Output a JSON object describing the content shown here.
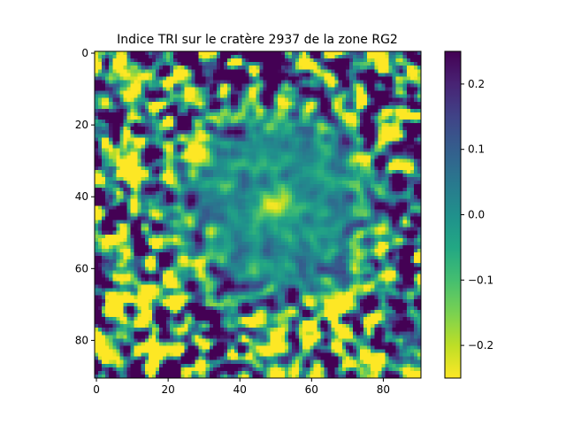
{
  "chart_data": {
    "type": "heatmap",
    "title": "Indice TRI sur le cratère 2937 de la zone RG2",
    "xlabel": "",
    "ylabel": "",
    "grid_size": [
      91,
      91
    ],
    "xlim": [
      -0.5,
      90.5
    ],
    "ylim": [
      90.5,
      -0.5
    ],
    "x_ticks": [
      0,
      20,
      40,
      60,
      80
    ],
    "y_ticks": [
      0,
      20,
      40,
      60,
      80
    ],
    "colormap": "viridis_r",
    "value_range": [
      -0.25,
      0.25
    ],
    "colorbar": {
      "ticks": [
        0.2,
        0.1,
        0.0,
        -0.1,
        -0.2
      ],
      "tick_labels": [
        "0.2",
        "0.1",
        "0.0",
        "−0.1",
        "−0.2"
      ],
      "placement": "right"
    },
    "description_of_field": "central crater bright spot near (50, 42) with low values; surrounding ring of mixed green; strong dark/bright speckle toward edges"
  }
}
